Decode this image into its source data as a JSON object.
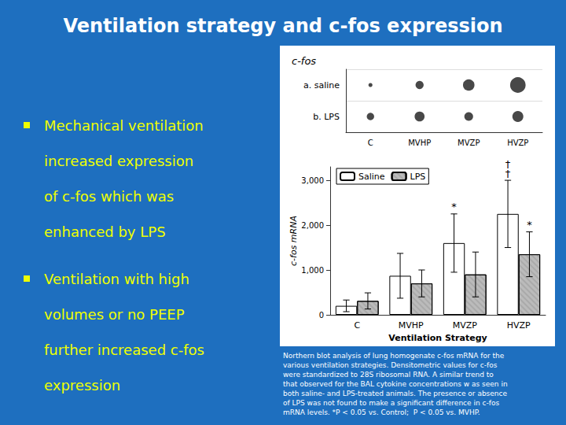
{
  "title": "Ventilation strategy and c-fos expression",
  "background_color": "#1E6FBF",
  "bullet_color": "#EEFF00",
  "bullets": [
    [
      [
        "Mechanical ventilation"
      ],
      [
        "increased expression"
      ],
      [
        "of ",
        "c-fos",
        " which was"
      ],
      [
        "enhanced by LPS"
      ]
    ],
    [
      [
        "Ventilation with high"
      ],
      [
        "volumes or no PEEP"
      ],
      [
        "further increased ",
        "c-fos"
      ],
      [
        "expression"
      ]
    ]
  ],
  "caption": [
    "Northern blot analysis of lung homogenate c-fos mRNA for the",
    "various ventilation strategies. Densitometric values for c-fos",
    "were standardized to 28S ribosomal RNA. A similar trend to",
    "that observed for the BAL cytokine concentrations w as seen in",
    "both saline- and LPS-treated animals. The presence or absence",
    "of LPS was not found to make a significant difference in c-fos",
    "mRNA levels. *P < 0.05 vs. Control;  P < 0.05 vs. MVHP."
  ],
  "chart_data": [
    {
      "type": "scatter",
      "title": "c-fos",
      "categories": [
        "C",
        "MVHP",
        "MVZP",
        "HVZP"
      ],
      "color": "#1A1A1A",
      "series": [
        {
          "name": "a. saline",
          "sizes": [
            15,
            60,
            120,
            220
          ]
        },
        {
          "name": "b. LPS",
          "sizes": [
            50,
            90,
            70,
            110
          ]
        }
      ]
    },
    {
      "type": "bar",
      "categories": [
        "C",
        "MVHP",
        "MVZP",
        "HVZP"
      ],
      "series": [
        {
          "name": "Saline",
          "color": "#FFFFFF",
          "values": [
            200,
            870,
            1600,
            2250
          ],
          "errors": [
            130,
            500,
            650,
            750
          ]
        },
        {
          "name": "LPS",
          "color": "#BBBBBB",
          "values": [
            310,
            700,
            900,
            1350
          ],
          "errors": [
            180,
            300,
            500,
            500
          ]
        }
      ],
      "xlabel": "Ventilation Strategy",
      "ylabel": "c-fos mRNA",
      "ylim": [
        0,
        3300
      ],
      "yticks": [
        0,
        {
          "value": 1000,
          "label": "1,000"
        },
        {
          "value": 2000,
          "label": "2,000"
        },
        {
          "value": 3000,
          "label": "3,000"
        }
      ],
      "grid": false,
      "legend": "upper left",
      "annotations": [
        {
          "text": "*",
          "category": "MVZP",
          "series": "Saline"
        },
        {
          "text": "†\n†",
          "category": "HVZP",
          "series": "Saline"
        },
        {
          "text": "*",
          "category": "HVZP",
          "series": "LPS"
        }
      ]
    }
  ]
}
